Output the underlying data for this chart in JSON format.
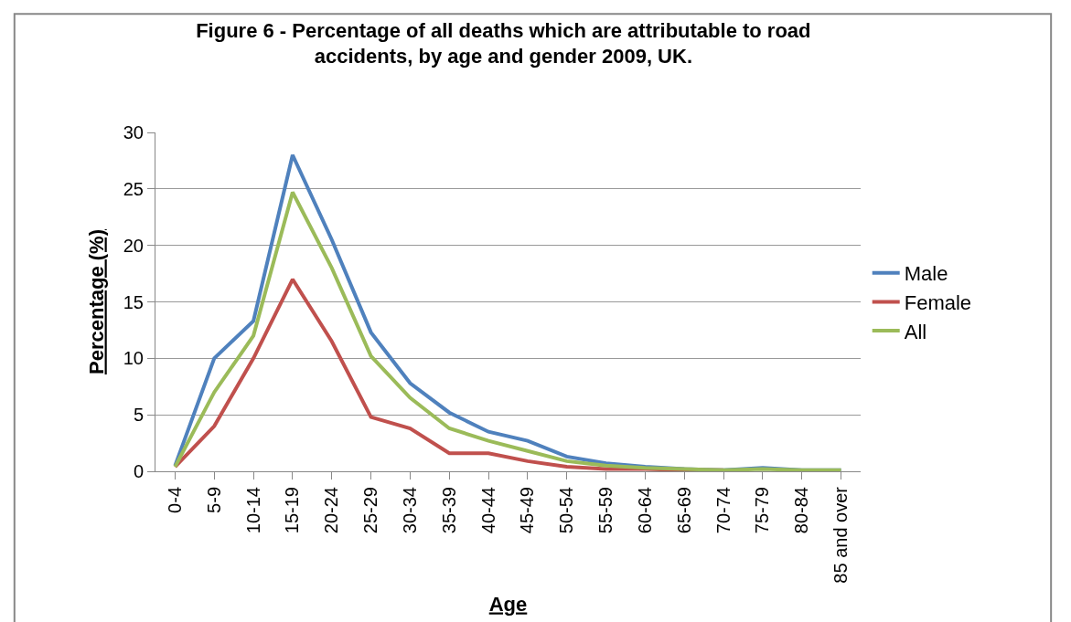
{
  "chart_data": {
    "type": "line",
    "title": "Figure 6 - Percentage of all deaths which are attributable to road\naccidents, by age and gender 2009, UK.",
    "xlabel": "Age",
    "ylabel": "Percentage (%)",
    "categories": [
      "0-4",
      "5-9",
      "10-14",
      "15-19",
      "20-24",
      "25-29",
      "30-34",
      "35-39",
      "40-44",
      "45-49",
      "50-54",
      "55-59",
      "60-64",
      "65-69",
      "70-74",
      "75-79",
      "80-84",
      "85 and over"
    ],
    "series": [
      {
        "name": "Male",
        "color": "#4f81bd",
        "values": [
          0.5,
          10,
          13.3,
          28,
          20.5,
          12.3,
          7.8,
          5.2,
          3.5,
          2.7,
          1.3,
          0.7,
          0.4,
          0.2,
          0.1,
          0.3,
          0.1,
          0.1
        ]
      },
      {
        "name": "Female",
        "color": "#c0504d",
        "values": [
          0.4,
          4,
          10,
          17,
          11.5,
          4.8,
          3.8,
          1.6,
          1.6,
          0.9,
          0.4,
          0.2,
          0.2,
          0.1,
          0.1,
          null,
          null,
          null
        ]
      },
      {
        "name": "All",
        "color": "#9bbb59",
        "values": [
          0.4,
          7,
          12,
          24.7,
          18,
          10.2,
          6.5,
          3.8,
          2.7,
          1.8,
          0.9,
          0.5,
          0.3,
          0.2,
          0.1,
          0.2,
          0.1,
          0.1
        ]
      }
    ],
    "ylim": [
      0,
      30
    ],
    "yticks": [
      0,
      5,
      10,
      15,
      20,
      25,
      30
    ],
    "grid": "y",
    "legend": "right",
    "marker": "none",
    "line_style": "solid"
  }
}
